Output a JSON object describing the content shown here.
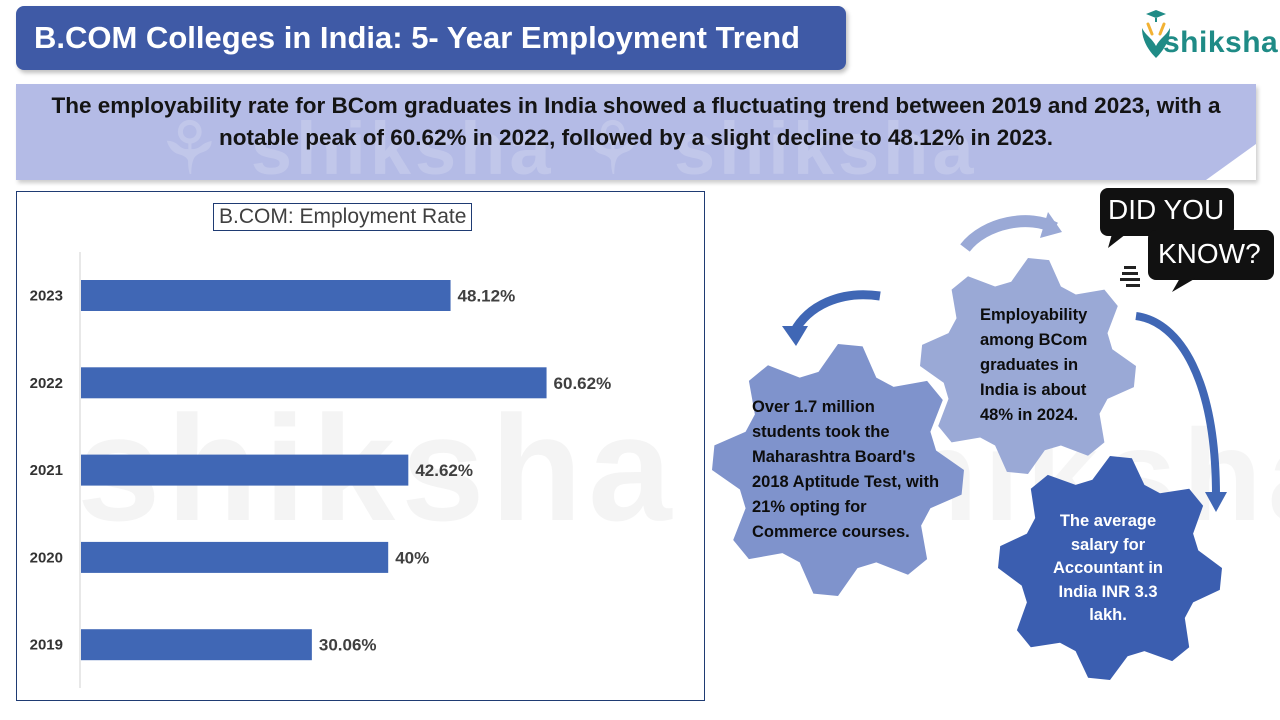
{
  "header": {
    "title": "B.COM Colleges in India: 5- Year Employment Trend",
    "logo_text": "shiksha"
  },
  "banner": {
    "text": "The employability rate for BCom graduates in India showed a fluctuating trend between 2019 and 2023, with a notable peak of 60.62% in 2022, followed by a slight decline to 48.12% in 2023."
  },
  "chart_data": {
    "type": "bar",
    "orientation": "horizontal",
    "title": "B.COM: Employment Rate",
    "categories": [
      "2023",
      "2022",
      "2021",
      "2020",
      "2019"
    ],
    "values": [
      48.12,
      60.62,
      42.62,
      40,
      30.06
    ],
    "value_labels": [
      "48.12%",
      "60.62%",
      "42.62%",
      "40%",
      "30.06%"
    ],
    "xlim": [
      0,
      75
    ],
    "xlabel": "",
    "ylabel": "",
    "bar_color": "#4067b5",
    "grid": false
  },
  "facts": {
    "did_you_know_line1": "DID YOU",
    "did_you_know_line2": "KNOW?",
    "fact1": "Over 1.7 million students took the Maharashtra Board's 2018 Aptitude Test, with 21% opting for Commerce courses.",
    "fact2": "Employability among BCom graduates in India is about 48% in 2024.",
    "fact3": "The average salary for Accountant in India INR 3.3 lakh."
  },
  "colors": {
    "header_bg": "#3f5aa6",
    "banner_bg": "#b4bbe6",
    "gear_light": "#7f93cc",
    "gear_pale": "#9aa9d6",
    "gear_dark": "#3b5eb0",
    "logo": "#1f8b86"
  }
}
